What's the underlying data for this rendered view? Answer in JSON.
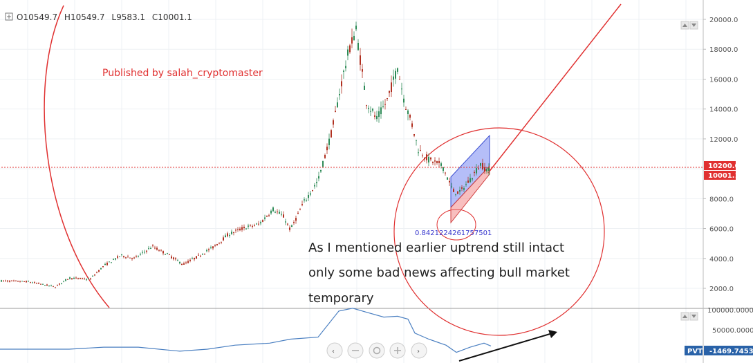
{
  "header": {
    "ohlc": {
      "open_label": "O",
      "open": "10549.7",
      "high_label": "H",
      "high": "10549.7",
      "low_label": "L",
      "low": "9583.1",
      "close_label": "C",
      "close": "10001.1"
    }
  },
  "annotations": {
    "published": "Published by salah_cryptomaster",
    "note_lines": [
      "As I mentioned earlier uptrend still intact",
      "only some bad news affecting bull market",
      "temporary"
    ],
    "ratio": "0.8421224261757501"
  },
  "price_axis": {
    "ticks": [
      "20000.0",
      "18000.0",
      "16000.0",
      "14000.0",
      "12000.0",
      "8000.0",
      "6000.0",
      "4000.0",
      "2000.0"
    ],
    "tick_values": [
      20000,
      18000,
      16000,
      14000,
      12000,
      8000,
      6000,
      4000,
      2000
    ],
    "badges": [
      {
        "label": "10200.0",
        "value": 10200,
        "color": "#e03030"
      },
      {
        "label": "10001.1",
        "value": 10001.1,
        "color": "#e03030"
      }
    ]
  },
  "indicator": {
    "name": "PVT",
    "value": "-1469.7453",
    "ticks": [
      "100000.0000",
      "50000.0000"
    ]
  },
  "colors": {
    "up": "#2e8b57",
    "down": "#b03020",
    "accent": "#e03030",
    "channel_up": "#5b6ef0",
    "channel_down": "#f07070",
    "pvt_line": "#4a7fc1",
    "badge_pvt": "#2962a8"
  },
  "icons": [
    "crosshair-icon",
    "zoom-out-icon",
    "reset-icon",
    "zoom-in-icon",
    "forward-icon"
  ],
  "chart_data": {
    "type": "candlestick",
    "price_axis_range": [
      1000,
      21000
    ],
    "price_path": [
      [
        0,
        2500
      ],
      [
        40,
        2450
      ],
      [
        80,
        2100
      ],
      [
        100,
        2700
      ],
      [
        130,
        2600
      ],
      [
        150,
        3500
      ],
      [
        175,
        4200
      ],
      [
        195,
        4000
      ],
      [
        220,
        4800
      ],
      [
        245,
        4200
      ],
      [
        265,
        3600
      ],
      [
        285,
        4100
      ],
      [
        310,
        4800
      ],
      [
        330,
        5600
      ],
      [
        350,
        6000
      ],
      [
        375,
        6300
      ],
      [
        395,
        7300
      ],
      [
        410,
        6800
      ],
      [
        420,
        5900
      ],
      [
        440,
        7800
      ],
      [
        460,
        9200
      ],
      [
        480,
        12500
      ],
      [
        495,
        16000
      ],
      [
        505,
        18000
      ],
      [
        515,
        19300
      ],
      [
        522,
        17000
      ],
      [
        530,
        14500
      ],
      [
        545,
        13300
      ],
      [
        560,
        14600
      ],
      [
        575,
        16800
      ],
      [
        585,
        14500
      ],
      [
        595,
        13100
      ],
      [
        605,
        11300
      ],
      [
        620,
        10600
      ],
      [
        640,
        10200
      ],
      [
        655,
        8500
      ],
      [
        665,
        8400
      ],
      [
        680,
        9300
      ],
      [
        695,
        10300
      ],
      [
        705,
        9900
      ]
    ],
    "pvt_range": [
      -40000,
      110000
    ],
    "pvt_path": [
      [
        0,
        0
      ],
      [
        100,
        0
      ],
      [
        150,
        5000
      ],
      [
        200,
        5000
      ],
      [
        260,
        -5000
      ],
      [
        300,
        0
      ],
      [
        340,
        10000
      ],
      [
        390,
        15000
      ],
      [
        420,
        25000
      ],
      [
        460,
        30000
      ],
      [
        490,
        95000
      ],
      [
        510,
        102000
      ],
      [
        530,
        92000
      ],
      [
        555,
        80000
      ],
      [
        575,
        82000
      ],
      [
        590,
        75000
      ],
      [
        600,
        40000
      ],
      [
        620,
        25000
      ],
      [
        645,
        10000
      ],
      [
        660,
        -8000
      ],
      [
        680,
        5000
      ],
      [
        700,
        15000
      ],
      [
        710,
        8000
      ]
    ]
  }
}
